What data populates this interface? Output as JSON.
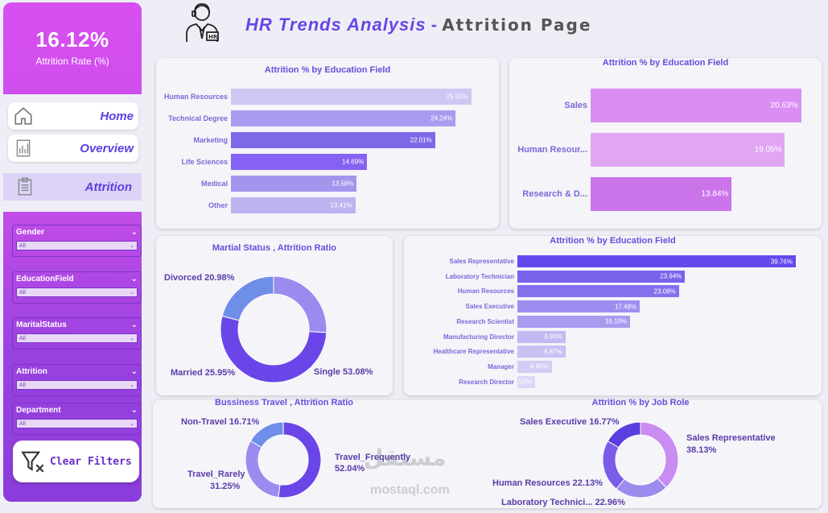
{
  "kpi": {
    "value": "16.12%",
    "label": "Attrition Rate (%)"
  },
  "nav": {
    "home": "Home",
    "overview": "Overview",
    "attrition": "Attrition"
  },
  "filters": [
    {
      "label": "Gender",
      "value": "All"
    },
    {
      "label": "EducationField",
      "value": "All"
    },
    {
      "label": "MaritalStatus",
      "value": "All"
    },
    {
      "label": "Attrition",
      "value": "All"
    },
    {
      "label": "Department",
      "value": "All"
    }
  ],
  "clear_filters": "Clear Filters",
  "header": {
    "title": "HR Trends Analysis",
    "dash": " - ",
    "subtitle": "Attrition Page",
    "icon_badge": "HR"
  },
  "watermark": {
    "arabic": "مستقل",
    "latin": "mostaql.com"
  },
  "colors": {
    "accent": "#6a45e6",
    "sidebar": "#c54de8",
    "bar_dark": "#6a4cf0",
    "bar_light": "#b9adf0",
    "pink": "#d88cf0"
  },
  "chart_data": [
    {
      "type": "bar",
      "title": "Attrition % by Education Field",
      "categories": [
        "Human Resources",
        "Technical Degree",
        "Marketing",
        "Life Sciences",
        "Medical",
        "Other"
      ],
      "values": [
        25.93,
        24.24,
        22.01,
        14.69,
        13.58,
        13.41
      ],
      "labels": [
        "25.93%",
        "24.24%",
        "22.01%",
        "14.69%",
        "13.58%",
        "13.41%"
      ],
      "orientation": "horizontal"
    },
    {
      "type": "bar",
      "title": "Attrition % by Education Field",
      "categories": [
        "Sales",
        "Human Resour...",
        "Research & D..."
      ],
      "values": [
        20.63,
        19.05,
        13.84
      ],
      "labels": [
        "20.63%",
        "19.05%",
        "13.84%"
      ],
      "orientation": "horizontal"
    },
    {
      "type": "pie",
      "title": "Martial Status , Attrition Ratio",
      "categories": [
        "Divorced",
        "Married",
        "Single"
      ],
      "values": [
        20.98,
        25.95,
        53.08
      ],
      "labels": [
        "Divorced 20.98%",
        "Married 25.95%",
        "Single 53.08%"
      ]
    },
    {
      "type": "bar",
      "title": "Attrition % by Education Field",
      "categories": [
        "Sales Representative",
        "Laboratory Technician",
        "Human Resources",
        "Sales Executive",
        "Research Scientist",
        "Manufacturing Director",
        "Healthcare Representative",
        "Manager",
        "Research Director"
      ],
      "values": [
        39.76,
        23.94,
        23.08,
        17.48,
        16.1,
        6.9,
        6.87,
        4.9,
        2.5
      ],
      "labels": [
        "39.76%",
        "23.94%",
        "23.08%",
        "17.48%",
        "16.10%",
        "6.90%",
        "6.87%",
        "4.90%",
        "2.50%"
      ],
      "orientation": "horizontal"
    },
    {
      "type": "pie",
      "title": "Bussiness Travel , Attrition Ratio",
      "categories": [
        "Non-Travel",
        "Travel_Frequently",
        "Travel_Rarely"
      ],
      "values": [
        16.71,
        52.04,
        31.25
      ],
      "labels": [
        "Non-Travel 16.71%",
        "Travel_Frequently 52.04%",
        "Travel_Rarely 31.25%"
      ]
    },
    {
      "type": "pie",
      "title": "Attrition % by Job Role",
      "categories": [
        "Sales Representative",
        "Laboratory Technici...",
        "Human Resources",
        "Sales Executive"
      ],
      "values": [
        38.13,
        22.96,
        22.13,
        16.77
      ],
      "labels": [
        "Sales Representative 38.13%",
        "Laboratory Technici... 22.96%",
        "Human Resources 22.13%",
        "Sales Executive 16.77%"
      ]
    }
  ]
}
